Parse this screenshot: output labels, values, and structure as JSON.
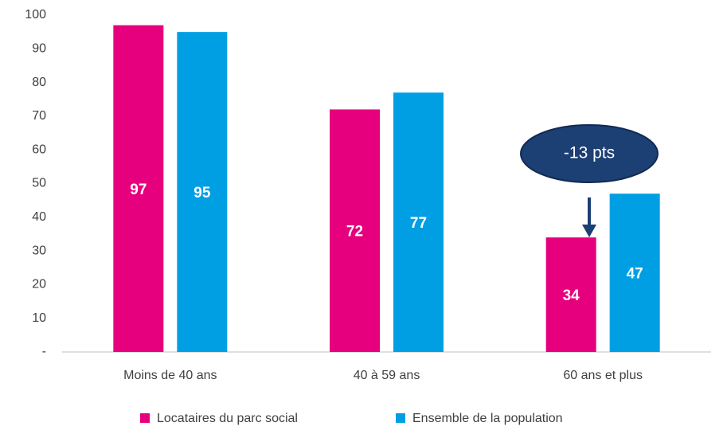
{
  "chart_data": {
    "type": "bar",
    "categories": [
      "Moins de 40 ans",
      "40 à 59 ans",
      "60 ans et plus"
    ],
    "series": [
      {
        "name": "Locataires du parc social",
        "color": "#e6007e",
        "values": [
          97,
          72,
          34
        ]
      },
      {
        "name": "Ensemble de la population",
        "color": "#009fe3",
        "values": [
          95,
          77,
          47
        ]
      }
    ],
    "ylim": [
      0,
      100
    ],
    "yticks": [
      {
        "value": 0,
        "label": "-"
      },
      10,
      20,
      30,
      40,
      50,
      60,
      70,
      80,
      90,
      100
    ],
    "grid": false,
    "legend": "bottom",
    "annotation": "-13 pts"
  }
}
